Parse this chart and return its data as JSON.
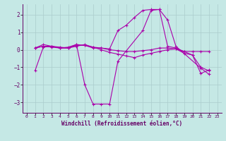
{
  "title": "",
  "xlabel": "Windchill (Refroidissement éolien,°C)",
  "ylabel": "",
  "background_color": "#c5e8e5",
  "line_color": "#aa00aa",
  "grid_color": "#aacccc",
  "xlim": [
    -0.5,
    23.5
  ],
  "ylim": [
    -3.6,
    2.6
  ],
  "yticks": [
    -3,
    -2,
    -1,
    0,
    1,
    2
  ],
  "xticks": [
    0,
    1,
    2,
    3,
    4,
    5,
    6,
    7,
    8,
    9,
    10,
    11,
    12,
    13,
    14,
    15,
    16,
    17,
    18,
    19,
    20,
    21,
    22,
    23
  ],
  "series": [
    [
      null,
      -1.2,
      0.15,
      0.2,
      0.15,
      0.1,
      0.3,
      -2.0,
      -3.1,
      -3.1,
      -3.1,
      -0.65,
      null,
      null,
      1.1,
      2.25,
      2.3,
      1.7,
      0.2,
      null,
      null,
      -1.05,
      -1.4,
      null
    ],
    [
      null,
      0.1,
      0.3,
      0.2,
      0.1,
      0.1,
      0.25,
      0.25,
      0.1,
      0.1,
      0.0,
      -0.05,
      -0.1,
      -0.1,
      -0.05,
      0.0,
      0.1,
      0.1,
      0.05,
      -0.1,
      -0.1,
      -0.1,
      -0.1,
      null
    ],
    [
      null,
      0.1,
      0.2,
      0.2,
      0.1,
      0.1,
      0.2,
      0.3,
      0.15,
      0.0,
      -0.15,
      -0.25,
      -0.35,
      -0.45,
      -0.3,
      -0.2,
      -0.1,
      0.0,
      0.05,
      -0.2,
      -0.3,
      -1.35,
      -1.15,
      null
    ],
    [
      null,
      0.1,
      0.2,
      0.15,
      0.1,
      0.15,
      0.3,
      0.25,
      0.15,
      0.1,
      0.05,
      1.1,
      1.4,
      1.85,
      2.25,
      2.3,
      2.3,
      0.2,
      0.1,
      -0.1,
      -0.3,
      -1.0,
      -1.2,
      null
    ]
  ]
}
